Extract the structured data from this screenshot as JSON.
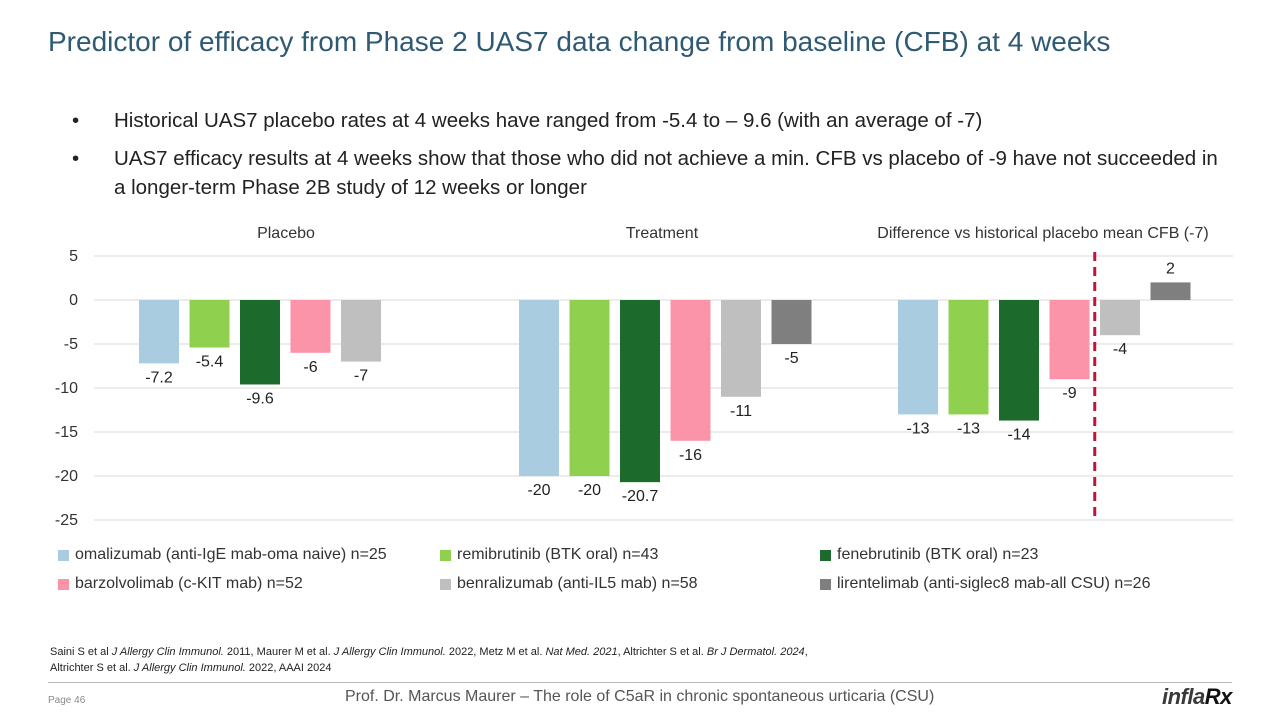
{
  "slide": {
    "title": "Predictor of efficacy from Phase 2 UAS7 data change from baseline (CFB) at 4 weeks",
    "bullets": [
      "Historical UAS7 placebo rates at 4 weeks have ranged from -5.4  to – 9.6 (with an average of -7)",
      "UAS7 efficacy results at 4 weeks show that those who did not achieve a min. CFB vs placebo of -9 have not succeeded in a longer-term Phase 2B study of 12 weeks or longer"
    ],
    "bullet_symbol": "•"
  },
  "chart_data": {
    "type": "bar",
    "groups": [
      "Placebo",
      "Treatment",
      "Difference vs historical placebo mean CFB (-7)"
    ],
    "ylim": [
      -25,
      5
    ],
    "yticks": [
      5,
      0,
      -5,
      -10,
      -15,
      -20,
      -25
    ],
    "grid": true,
    "separator": "dashed vertical line between 4th and 5th bar of the Difference group",
    "separator_color": "#c0143c",
    "series": [
      {
        "name": "omalizumab (anti-IgE mab-oma naive) n=25",
        "color": "#a9cce0",
        "values": [
          -7.2,
          -20,
          -13
        ],
        "labels": [
          "-7.2",
          "-20",
          "-13"
        ]
      },
      {
        "name": "remibrutinib (BTK oral) n=43",
        "color": "#8fd14f",
        "values": [
          -5.4,
          -20,
          -13
        ],
        "labels": [
          "-5.4",
          "-20",
          "-13"
        ]
      },
      {
        "name": "fenebrutinib (BTK oral) n=23",
        "color": "#1d6b2c",
        "values": [
          -9.6,
          -20.7,
          -13.7
        ],
        "labels": [
          "-9.6",
          "-20.7",
          "-14"
        ]
      },
      {
        "name": "barzolvolimab (c-KIT mab) n=52",
        "color": "#fb93a9",
        "values": [
          -6,
          -16,
          -9
        ],
        "labels": [
          "-6",
          "-16",
          "-9"
        ]
      },
      {
        "name": "benralizumab (anti-IL5 mab) n=58",
        "color": "#bfbfbf",
        "values": [
          -7,
          -11,
          -4
        ],
        "labels": [
          "-7",
          "-11",
          "-4"
        ]
      },
      {
        "name": "lirentelimab (anti-siglec8 mab-all CSU) n=26",
        "color": "#7f7f7f",
        "values": [
          null,
          -5,
          2
        ],
        "labels": [
          "",
          "-5",
          "2"
        ]
      }
    ]
  },
  "references": {
    "line1": [
      {
        "t": "Saini S et al ",
        "i": false
      },
      {
        "t": "J Allergy Clin Immunol.",
        "i": true
      },
      {
        "t": "  2011, Maurer M et al. ",
        "i": false
      },
      {
        "t": "J Allergy Clin Immunol.",
        "i": true
      },
      {
        "t": "  2022, Metz M et al. ",
        "i": false
      },
      {
        "t": "Nat Med. 2021",
        "i": true
      },
      {
        "t": ", Altrichter S et al. ",
        "i": false
      },
      {
        "t": "Br J Dermatol. 2024",
        "i": true
      },
      {
        "t": ",",
        "i": false
      }
    ],
    "line2": [
      {
        "t": "Altrichter S et al. ",
        "i": false
      },
      {
        "t": "J Allergy Clin Immunol.",
        "i": true
      },
      {
        "t": "  2022, AAAI 2024",
        "i": false
      }
    ]
  },
  "footer": {
    "page": "Page 46",
    "presenter": "Prof. Dr. Marcus Maurer – The role of C5aR in chronic spontaneous urticaria (CSU)",
    "logo_main": "infla",
    "logo_rx": "Rx"
  }
}
